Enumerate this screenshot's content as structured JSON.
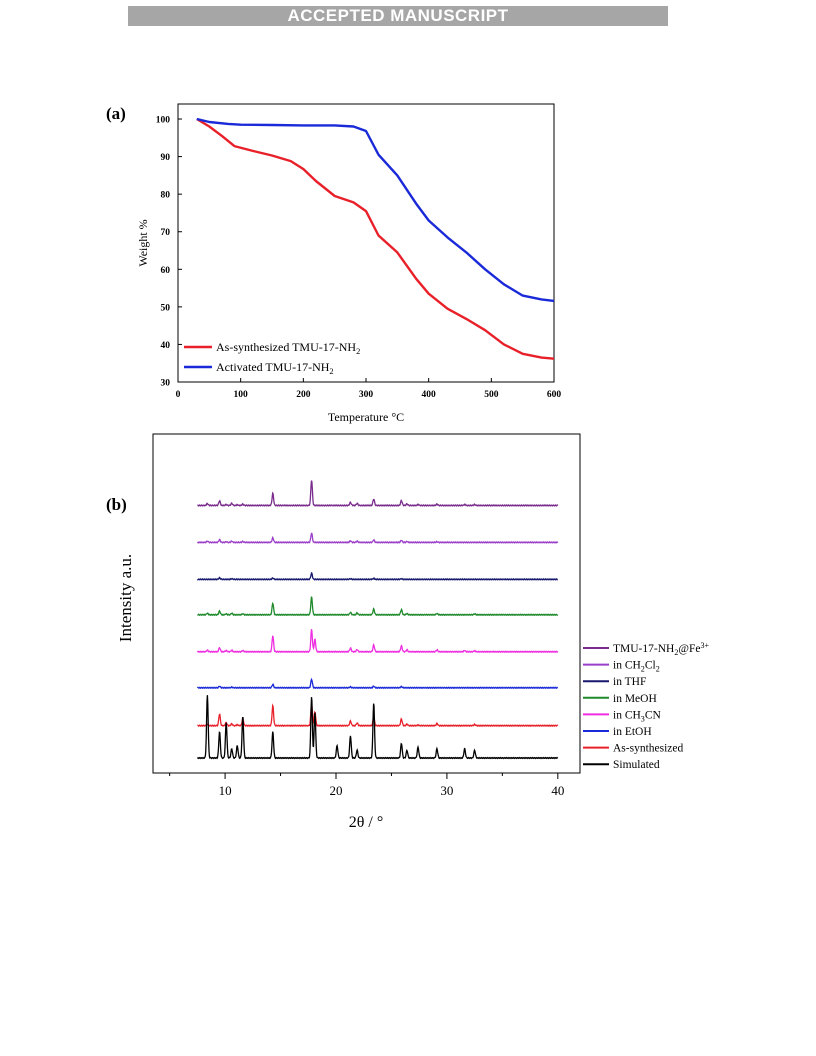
{
  "banner": "ACCEPTED MANUSCRIPT",
  "chart_data": [
    {
      "panel_label": "(a)",
      "type": "line",
      "xlabel": "Temperature °C",
      "ylabel": "Weight %",
      "xlim": [
        0,
        600
      ],
      "ylim": [
        30,
        104
      ],
      "xticks": [
        0,
        100,
        200,
        300,
        400,
        500,
        600
      ],
      "yticks": [
        30,
        40,
        50,
        60,
        70,
        80,
        90,
        100
      ],
      "legend_position": "bottom-left",
      "grid": false,
      "series": [
        {
          "name": "As-synthesized TMU-17-NH",
          "name_sub": "2",
          "color": "#e8202a",
          "x": [
            30,
            50,
            70,
            90,
            120,
            150,
            180,
            200,
            220,
            250,
            280,
            300,
            320,
            350,
            380,
            400,
            430,
            460,
            490,
            520,
            550,
            580,
            600
          ],
          "y": [
            100,
            98,
            95.5,
            92.8,
            91.5,
            90.3,
            88.8,
            86.7,
            83.5,
            79.5,
            77.8,
            75.5,
            69,
            64.5,
            57.5,
            53.5,
            49.5,
            46.8,
            43.8,
            40,
            37.5,
            36.5,
            36.2
          ]
        },
        {
          "name": "Activated TMU-17-NH",
          "name_sub": "2",
          "color": "#1a2ad8",
          "x": [
            30,
            50,
            80,
            100,
            150,
            200,
            250,
            280,
            300,
            320,
            350,
            380,
            400,
            430,
            460,
            490,
            520,
            550,
            580,
            600
          ],
          "y": [
            100,
            99.2,
            98.7,
            98.5,
            98.4,
            98.3,
            98.3,
            98,
            96.8,
            90.5,
            85,
            77.5,
            73,
            68.5,
            64.5,
            60,
            56,
            53,
            52,
            51.6
          ]
        }
      ]
    },
    {
      "panel_label": "(b)",
      "type": "line",
      "xlabel": "2θ / °",
      "ylabel": "Intensity a.u.",
      "xlim": [
        3.5,
        42
      ],
      "xticks": [
        10,
        20,
        30,
        40
      ],
      "legend_position": "right",
      "grid": false,
      "peak_positions": [
        8.4,
        9.5,
        10.1,
        10.6,
        11.1,
        11.6,
        14.3,
        17.8,
        18.1,
        20.1,
        21.3,
        21.9,
        23.4,
        25.9,
        26.4,
        27.4,
        29.1,
        31.6,
        32.5
      ],
      "series": [
        {
          "name": "TMU-17-NH",
          "name_sub": "2",
          "name_suffix": "@Fe",
          "name_sup": "3+",
          "color": "#7a2c8c",
          "baseline": 0.82,
          "peaks": [
            0.006,
            0.015,
            0.003,
            0.007,
            0.002,
            0.004,
            0.039,
            0.083,
            0,
            0,
            0.01,
            0.007,
            0.021,
            0.016,
            0.005,
            0.003,
            0.004,
            0.003,
            0.003
          ]
        },
        {
          "name": "in CH",
          "name_sub": "2",
          "name_suffix": "Cl",
          "name_sub2": "2",
          "color": "#9b3fc9",
          "baseline": 0.7,
          "peaks": [
            0.004,
            0.009,
            0.002,
            0.004,
            0,
            0.003,
            0.015,
            0.03,
            0,
            0,
            0.005,
            0.004,
            0.008,
            0.007,
            0.003,
            0,
            0.002,
            0,
            0
          ]
        },
        {
          "name": "in THF",
          "name_sub": "",
          "color": "#18186e",
          "baseline": 0.58,
          "peaks": [
            0,
            0.005,
            0,
            0.002,
            0,
            0,
            0.004,
            0.02,
            0,
            0,
            0.002,
            0,
            0.003,
            0.002,
            0,
            0,
            0,
            0,
            0
          ]
        },
        {
          "name": "in MeOH",
          "name_sub": "",
          "color": "#1f8a2c",
          "baseline": 0.465,
          "peaks": [
            0.005,
            0.012,
            0.003,
            0.005,
            0,
            0.003,
            0.038,
            0.058,
            0,
            0,
            0.008,
            0.006,
            0.019,
            0.017,
            0.004,
            0,
            0.004,
            0,
            0.003
          ]
        },
        {
          "name": "in CH",
          "name_sub": "3",
          "name_suffix": "CN",
          "color": "#ee2ee0",
          "baseline": 0.345,
          "peaks": [
            0.005,
            0.013,
            0.004,
            0.005,
            0,
            0.004,
            0.052,
            0.073,
            0.04,
            0,
            0.012,
            0.007,
            0.022,
            0.019,
            0.006,
            0,
            0.006,
            0.004,
            0.003
          ]
        },
        {
          "name": "in EtOH",
          "name_sub": "",
          "color": "#1a2ad8",
          "baseline": 0.228,
          "peaks": [
            0,
            0.005,
            0,
            0.002,
            0,
            0,
            0.011,
            0.028,
            0,
            0,
            0.003,
            0,
            0.005,
            0.004,
            0,
            0,
            0,
            0,
            0
          ]
        },
        {
          "name": "As-synthesized",
          "name_sub": "",
          "color": "#e8202a",
          "baseline": 0.105,
          "peaks": [
            0.004,
            0.038,
            0.01,
            0.006,
            0.003,
            0.022,
            0.065,
            0.07,
            0.045,
            0,
            0.015,
            0.009,
            0.028,
            0.022,
            0.005,
            0.002,
            0.007,
            0,
            0.004
          ]
        },
        {
          "name": "Simulated",
          "name_sub": "",
          "color": "#000000",
          "baseline": 0.0,
          "peaks": [
            0.205,
            0.085,
            0.115,
            0.03,
            0.04,
            0.135,
            0.085,
            0.2,
            0.15,
            0.04,
            0.072,
            0.025,
            0.18,
            0.048,
            0.025,
            0.035,
            0.03,
            0.03,
            0.025
          ]
        }
      ]
    }
  ]
}
